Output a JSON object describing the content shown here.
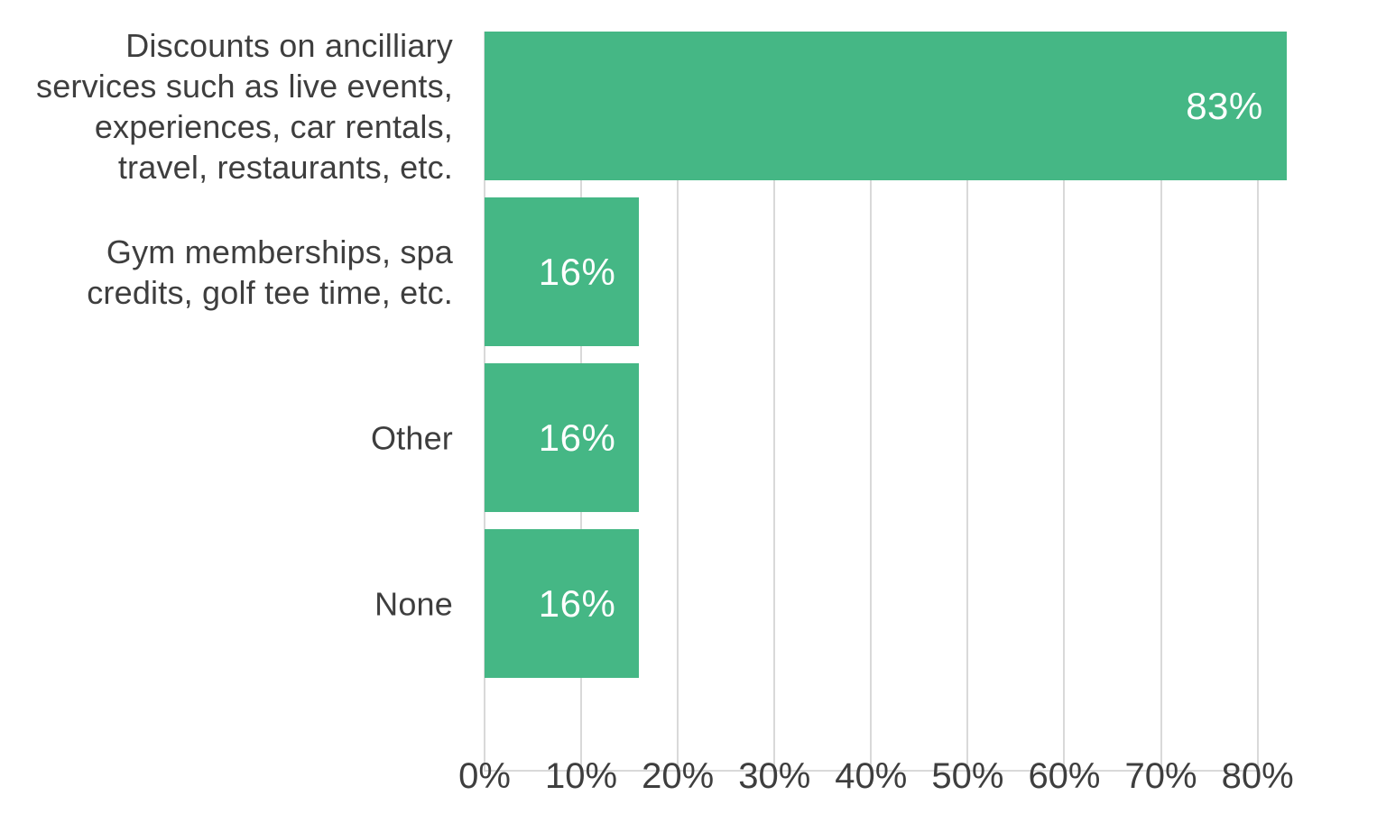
{
  "chart_data": {
    "type": "bar",
    "orientation": "horizontal",
    "title": "",
    "xlabel": "",
    "ylabel": "",
    "categories": [
      "Discounts on ancilliary services such as live events, experiences, car rentals, travel, restaurants, etc.",
      "Gym memberships, spa credits, golf tee time, etc.",
      "Other",
      "None"
    ],
    "category_lines": [
      [
        "Discounts on ancilliary",
        "services such as live events,",
        "experiences, car rentals,",
        "travel, restaurants, etc."
      ],
      [
        "Gym memberships, spa",
        "credits, golf tee time, etc."
      ],
      [
        "Other"
      ],
      [
        "None"
      ]
    ],
    "values": [
      83,
      16,
      16,
      16
    ],
    "value_labels": [
      "83%",
      "16%",
      "16%",
      "16%"
    ],
    "x_axis": {
      "ticks": [
        0,
        10,
        20,
        30,
        40,
        50,
        60,
        70,
        80
      ],
      "tick_labels": [
        "0%",
        "10%",
        "20%",
        "30%",
        "40%",
        "50%",
        "60%",
        "70%",
        "80%"
      ],
      "min": 0,
      "max": 89,
      "unit": "%"
    },
    "grid": true,
    "legend": false,
    "colors": {
      "bar": "#45b785",
      "category_text": "#3e3e3e",
      "tick_text": "#3e3e3e",
      "value_text": "#ffffff",
      "gridline": "#d9d9d9",
      "axis_line": "#d9d9d9",
      "background": "#ffffff"
    }
  }
}
